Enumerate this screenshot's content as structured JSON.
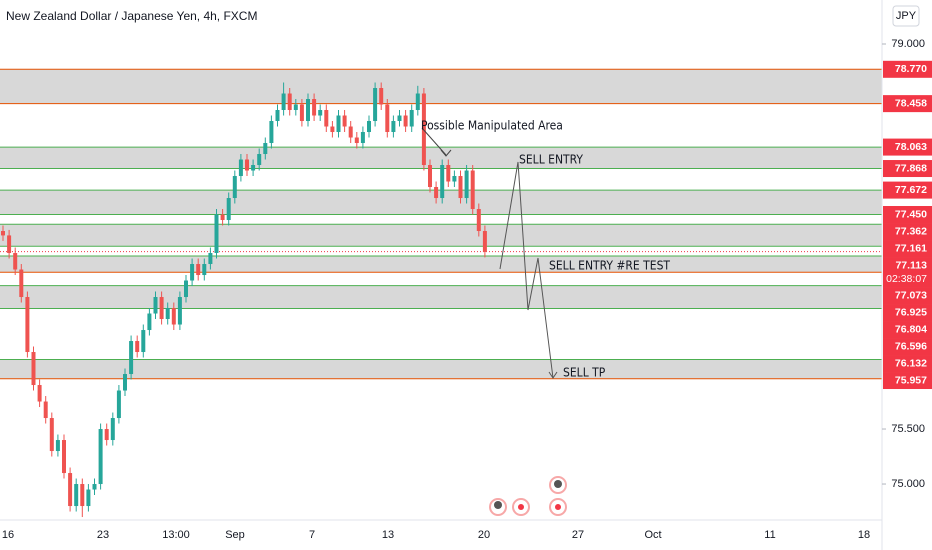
{
  "chart_data": {
    "type": "candlestick",
    "title": "New Zealand Dollar / Japanese Yen, 4h, FXCM",
    "currency": "JPY",
    "open": [
      77.3,
      77.26,
      77.1,
      76.95,
      76.7,
      76.2,
      75.9,
      75.75,
      75.6,
      75.3,
      75.4,
      75.1,
      74.8,
      75.0,
      74.8,
      74.95,
      75.0,
      75.5,
      75.4,
      75.6,
      75.85,
      76.0,
      76.3,
      76.2,
      76.4,
      76.55,
      76.7,
      76.5,
      76.6,
      76.45,
      76.7,
      76.85,
      77.0,
      76.9,
      77.0,
      77.1,
      77.45,
      77.4,
      77.6,
      77.8,
      77.95,
      77.85,
      77.9,
      78.0,
      78.1,
      78.3,
      78.4,
      78.55,
      78.4,
      78.45,
      78.3,
      78.5,
      78.35,
      78.4,
      78.25,
      78.2,
      78.35,
      78.25,
      78.15,
      78.1,
      78.2,
      78.3,
      78.6,
      78.45,
      78.2,
      78.3,
      78.35,
      78.25,
      78.4,
      78.55,
      77.9,
      77.7,
      77.6,
      77.9,
      77.75,
      77.8,
      77.6,
      77.85,
      77.5,
      77.3
    ],
    "high": [
      77.35,
      77.31,
      77.15,
      77.0,
      76.75,
      76.25,
      75.95,
      75.8,
      75.65,
      75.45,
      75.45,
      75.15,
      75.05,
      75.05,
      75.0,
      75.05,
      75.55,
      75.55,
      75.65,
      75.9,
      76.05,
      76.35,
      76.35,
      76.45,
      76.6,
      76.75,
      76.75,
      76.65,
      76.65,
      76.75,
      76.9,
      77.05,
      77.05,
      77.05,
      77.15,
      77.5,
      77.5,
      77.65,
      77.85,
      78.0,
      78.0,
      77.95,
      78.05,
      78.15,
      78.35,
      78.45,
      78.65,
      78.6,
      78.5,
      78.5,
      78.55,
      78.55,
      78.45,
      78.45,
      78.3,
      78.4,
      78.4,
      78.3,
      78.2,
      78.25,
      78.35,
      78.65,
      78.65,
      78.5,
      78.35,
      78.4,
      78.4,
      78.45,
      78.62,
      78.6,
      77.95,
      77.75,
      77.95,
      77.95,
      77.85,
      77.85,
      77.9,
      77.9,
      77.55,
      77.35
    ],
    "low": [
      77.21,
      77.05,
      76.9,
      76.65,
      76.15,
      75.85,
      75.7,
      75.55,
      75.25,
      75.25,
      75.05,
      74.75,
      74.75,
      74.7,
      74.75,
      74.9,
      74.95,
      75.35,
      75.35,
      75.55,
      75.8,
      75.95,
      76.15,
      76.15,
      76.35,
      76.5,
      76.45,
      76.45,
      76.4,
      76.4,
      76.65,
      76.8,
      76.85,
      76.85,
      76.95,
      77.05,
      77.35,
      77.35,
      77.55,
      77.75,
      77.8,
      77.8,
      77.85,
      77.95,
      78.05,
      78.25,
      78.35,
      78.35,
      78.35,
      78.25,
      78.25,
      78.3,
      78.3,
      78.2,
      78.15,
      78.15,
      78.2,
      78.1,
      78.05,
      78.05,
      78.15,
      78.25,
      78.4,
      78.15,
      78.15,
      78.25,
      78.2,
      78.2,
      78.35,
      77.85,
      77.65,
      77.55,
      77.55,
      77.7,
      77.7,
      77.55,
      77.55,
      77.45,
      77.25,
      77.06
    ],
    "close": [
      77.26,
      77.1,
      76.95,
      76.7,
      76.2,
      75.9,
      75.75,
      75.6,
      75.3,
      75.4,
      75.1,
      74.8,
      75.0,
      74.8,
      74.95,
      75.0,
      75.5,
      75.4,
      75.6,
      75.85,
      76.0,
      76.3,
      76.2,
      76.4,
      76.55,
      76.7,
      76.5,
      76.6,
      76.45,
      76.7,
      76.85,
      77.0,
      76.9,
      77.0,
      77.1,
      77.45,
      77.4,
      77.6,
      77.8,
      77.95,
      77.85,
      77.9,
      78.0,
      78.1,
      78.3,
      78.4,
      78.55,
      78.4,
      78.45,
      78.3,
      78.5,
      78.35,
      78.4,
      78.25,
      78.2,
      78.35,
      78.25,
      78.15,
      78.1,
      78.2,
      78.3,
      78.6,
      78.45,
      78.2,
      78.3,
      78.35,
      78.25,
      78.4,
      78.55,
      77.9,
      77.7,
      77.6,
      77.9,
      77.75,
      77.8,
      77.6,
      77.85,
      77.5,
      77.3,
      77.11
    ],
    "up_color": "#26a69a",
    "down_color": "#ef5350",
    "ylim": [
      74.673,
      79.4
    ],
    "yticks": [
      {
        "value": 79,
        "label": "79.000"
      },
      {
        "value": 75.5,
        "label": "75.500"
      },
      {
        "value": 75,
        "label": "75.000"
      }
    ],
    "xticks": [
      "16",
      "23",
      "13:00",
      "Sep",
      "7",
      "13",
      "20",
      "27",
      "Oct",
      "11",
      "18"
    ],
    "zones": [
      {
        "top": {
          "value": 78.77,
          "label": "78.770",
          "color": "#e65100"
        },
        "bottom": {
          "value": 78.458,
          "label": "78.458",
          "color": "#e65100"
        }
      },
      {
        "top": {
          "value": 78.063,
          "label": "78.063",
          "color": "#4caf50"
        },
        "bottom": {
          "value": 77.868,
          "label": "77.868",
          "color": "#4caf50"
        }
      },
      {
        "top": {
          "value": 77.672,
          "label": "77.672",
          "color": "#4caf50"
        },
        "bottom": {
          "value": 77.45,
          "label": "77.450",
          "color": "#4caf50"
        }
      },
      {
        "top": {
          "value": 77.362,
          "label": "77.362",
          "color": "#4caf50"
        },
        "bottom": {
          "value": 77.161,
          "label": "77.161",
          "color": "#4caf50"
        }
      },
      {
        "top": {
          "value": 77.073,
          "label": "77.073",
          "color": "#4caf50"
        },
        "bottom": {
          "value": 76.925,
          "label": "76.925",
          "color": "#e65100"
        }
      },
      {
        "top": {
          "value": 76.804,
          "label": "76.804",
          "color": "#4caf50"
        },
        "bottom": {
          "value": 76.596,
          "label": "76.596",
          "color": "#4caf50"
        }
      },
      {
        "top": {
          "value": 76.132,
          "label": "76.132",
          "color": "#4caf50"
        },
        "bottom": {
          "value": 75.957,
          "label": "75.957",
          "color": "#e65100"
        }
      }
    ],
    "zone_fill": "#d1d1d1",
    "label_color": "#f23645",
    "current_price": {
      "value": 77.113,
      "label": "77.113",
      "countdown": "02:38:07"
    },
    "annotations": [
      "Possible Manipulated Area",
      "SELL ENTRY",
      "SELL ENTRY #RE TEST",
      "SELL TP"
    ]
  }
}
